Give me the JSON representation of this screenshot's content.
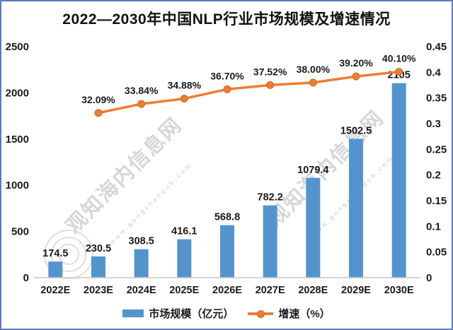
{
  "chart_data": {
    "type": "combo-bar-line",
    "title": "2022—2030年中国NLP行业市场规模及增速情况",
    "categories": [
      "2022E",
      "2023E",
      "2024E",
      "2025E",
      "2026E",
      "2027E",
      "2028E",
      "2029E",
      "2030E"
    ],
    "series": [
      {
        "name": "市场规模（亿元）",
        "type": "bar",
        "axis": "left",
        "color": "#5494CE",
        "values": [
          174.5,
          230.5,
          308.5,
          416.1,
          568.8,
          782.2,
          1079.4,
          1502.5,
          2105
        ],
        "labels": [
          "174.5",
          "230.5",
          "308.5",
          "416.1",
          "568.8",
          "782.2",
          "1079.4",
          "1502.5",
          "2105"
        ]
      },
      {
        "name": "增速（%）",
        "type": "line",
        "axis": "right",
        "color": "#ED7D31",
        "values": [
          null,
          0.3209,
          0.3384,
          0.3488,
          0.367,
          0.3752,
          0.38,
          0.392,
          0.401
        ],
        "labels": [
          "",
          "32.09%",
          "33.84%",
          "34.88%",
          "36.70%",
          "37.52%",
          "38.00%",
          "39.20%",
          "40.10%"
        ]
      }
    ],
    "left_axis": {
      "min": 0,
      "max": 2500,
      "ticks": [
        "0",
        "500",
        "1000",
        "1500",
        "2000",
        "2500"
      ]
    },
    "right_axis": {
      "min": 0,
      "max": 0.45,
      "ticks": [
        "0",
        "0.05",
        "0.1",
        "0.15",
        "0.2",
        "0.25",
        "0.3",
        "0.35",
        "0.4",
        "0.45"
      ]
    },
    "grid": false,
    "legend_position": "bottom"
  },
  "watermark": {
    "text": "观知海内信息网",
    "url": "www.gongzhangob.com"
  },
  "colors": {
    "bar": "#5494CE",
    "line": "#ED7D31",
    "marker_edge": "#D2691E",
    "frame_border": "#5B79BB",
    "axis_line": "#C6C6C6",
    "text": "#1A1A1A",
    "watermark": "#D6D6D6"
  }
}
